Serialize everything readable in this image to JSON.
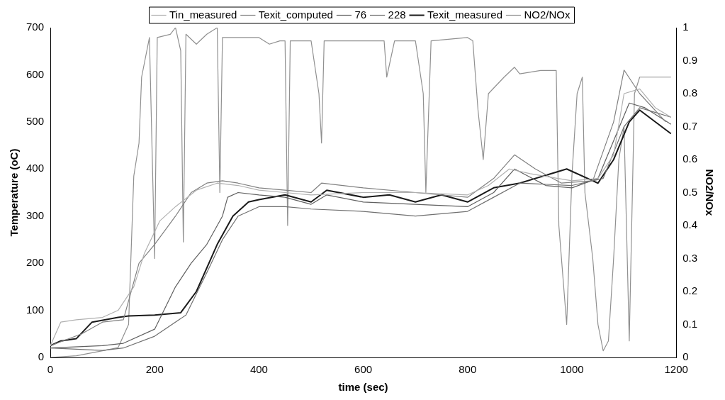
{
  "chart_data": {
    "type": "line",
    "xlabel": "time (sec)",
    "ylabel": "Temperature (oC)",
    "y2label": "NO2/NOx",
    "legend": "top",
    "grid": false,
    "marker": "none",
    "line_style": "solid",
    "xlim": [
      0,
      1200
    ],
    "xticks": [
      0,
      200,
      400,
      600,
      800,
      1000,
      1200
    ],
    "ylim": [
      0,
      700
    ],
    "yticks": [
      0,
      100,
      200,
      300,
      400,
      500,
      600,
      700
    ],
    "y2lim": [
      0,
      1
    ],
    "y2ticks": [
      0,
      0.1,
      0.2,
      0.3,
      0.4,
      0.5,
      0.6,
      0.7,
      0.8,
      0.9,
      1
    ],
    "series": [
      {
        "name": "Tin_measured",
        "color": "#b0b0b0",
        "x": [
          0,
          20,
          50,
          100,
          130,
          160,
          180,
          210,
          240,
          280,
          320,
          360,
          400,
          450,
          500,
          600,
          700,
          800,
          840,
          880,
          920,
          1000,
          1050,
          1080,
          1100,
          1130,
          1160,
          1190
        ],
        "values": [
          25,
          75,
          80,
          85,
          100,
          150,
          220,
          290,
          320,
          355,
          370,
          365,
          355,
          350,
          345,
          350,
          350,
          345,
          365,
          400,
          390,
          375,
          380,
          430,
          560,
          570,
          530,
          510
        ]
      },
      {
        "name": "Texit_computed",
        "color": "#808080",
        "x": [
          0,
          60,
          100,
          140,
          170,
          200,
          240,
          270,
          300,
          330,
          360,
          400,
          450,
          500,
          520,
          600,
          700,
          800,
          850,
          890,
          930,
          980,
          1040,
          1080,
          1100,
          1130,
          1180
        ],
        "values": [
          25,
          50,
          75,
          80,
          200,
          240,
          300,
          350,
          370,
          375,
          370,
          360,
          355,
          350,
          370,
          360,
          350,
          340,
          380,
          430,
          400,
          370,
          375,
          500,
          610,
          560,
          500
        ]
      },
      {
        "name": "76",
        "color": "#606060",
        "x": [
          0,
          100,
          140,
          200,
          240,
          270,
          300,
          330,
          340,
          360,
          400,
          450,
          500,
          530,
          600,
          700,
          800,
          850,
          890,
          950,
          1000,
          1050,
          1080,
          1110,
          1140,
          1190
        ],
        "values": [
          20,
          25,
          30,
          60,
          150,
          200,
          240,
          300,
          340,
          350,
          345,
          340,
          325,
          345,
          330,
          325,
          320,
          350,
          400,
          365,
          360,
          380,
          460,
          540,
          530,
          495
        ]
      },
      {
        "name": "228",
        "color": "#707070",
        "x": [
          0,
          100,
          140,
          200,
          260,
          300,
          330,
          360,
          400,
          450,
          500,
          600,
          700,
          800,
          850,
          900,
          1000,
          1060,
          1100,
          1130,
          1190
        ],
        "values": [
          20,
          15,
          20,
          45,
          90,
          180,
          250,
          300,
          320,
          320,
          315,
          310,
          300,
          310,
          340,
          370,
          365,
          380,
          490,
          530,
          510
        ]
      },
      {
        "name": "Texit_measured",
        "color": "#1a1a1a",
        "x": [
          0,
          20,
          50,
          80,
          130,
          150,
          200,
          250,
          280,
          320,
          350,
          380,
          400,
          450,
          500,
          530,
          600,
          650,
          700,
          750,
          800,
          850,
          900,
          990,
          1050,
          1080,
          1110,
          1130,
          1190
        ],
        "values": [
          25,
          35,
          40,
          75,
          85,
          88,
          90,
          95,
          140,
          240,
          300,
          330,
          335,
          345,
          330,
          355,
          340,
          345,
          330,
          345,
          330,
          360,
          370,
          400,
          370,
          420,
          500,
          525,
          475
        ]
      },
      {
        "name": "NO2/NOx",
        "color": "#909090",
        "axis": "y2",
        "x": [
          0,
          50,
          100,
          130,
          150,
          160,
          170,
          175,
          190,
          200,
          205,
          230,
          240,
          250,
          255,
          260,
          280,
          300,
          320,
          325,
          330,
          350,
          400,
          420,
          440,
          450,
          455,
          460,
          500,
          515,
          520,
          525,
          560,
          600,
          640,
          645,
          660,
          700,
          715,
          720,
          730,
          800,
          810,
          820,
          830,
          840,
          870,
          890,
          900,
          940,
          970,
          975,
          990,
          1000,
          1010,
          1020,
          1025,
          1040,
          1050,
          1060,
          1070,
          1080,
          1090,
          1100,
          1110,
          1120,
          1130,
          1150,
          1180,
          1190
        ],
        "values": [
          0,
          0.005,
          0.02,
          0.03,
          0.1,
          0.55,
          0.65,
          0.85,
          0.97,
          0.3,
          0.97,
          0.98,
          1,
          0.93,
          0.35,
          0.98,
          0.95,
          0.98,
          1,
          0.5,
          0.97,
          0.97,
          0.97,
          0.95,
          0.96,
          0.96,
          0.4,
          0.96,
          0.96,
          0.8,
          0.65,
          0.96,
          0.96,
          0.96,
          0.96,
          0.85,
          0.96,
          0.96,
          0.8,
          0.5,
          0.96,
          0.97,
          0.96,
          0.75,
          0.6,
          0.8,
          0.85,
          0.88,
          0.86,
          0.87,
          0.87,
          0.4,
          0.1,
          0.55,
          0.8,
          0.85,
          0.5,
          0.3,
          0.1,
          0.02,
          0.05,
          0.3,
          0.6,
          0.7,
          0.05,
          0.8,
          0.85,
          0.85,
          0.85,
          0.85
        ]
      }
    ]
  }
}
